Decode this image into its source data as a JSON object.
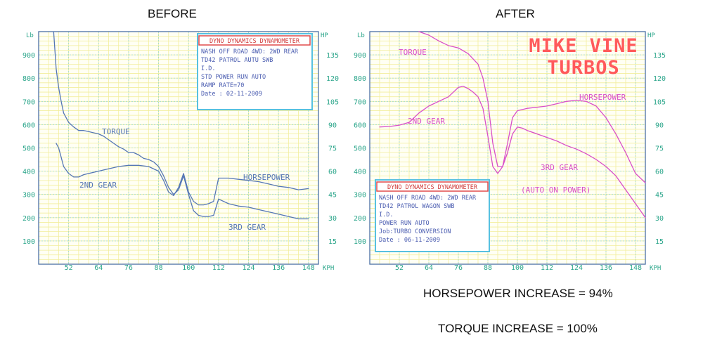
{
  "headings": {
    "before": "BEFORE",
    "after": "AFTER"
  },
  "footer": {
    "hp_increase": "HORSEPOWER INCREASE = 94%",
    "torque_increase": "TORQUE INCREASE = 100%"
  },
  "colors": {
    "grid_minor": "#f2ee9c",
    "grid_major": "#80cfd8",
    "axis_text": "#2aa58a",
    "before_curve": "#5577b5",
    "after_curve": "#d94fc9",
    "box_border": "#57c1e0",
    "title_border": "#e04c4c",
    "title_text": "#d03a3a",
    "box_text": "#4a5cb0",
    "brand": "#ff5a5a"
  },
  "chart_data": [
    {
      "type": "line",
      "title": "BEFORE",
      "xlabel": "KPH",
      "ylabel_left": "Lb",
      "ylabel_right": "HP",
      "xlim": [
        40,
        152
      ],
      "x_ticks": [
        "52",
        "64",
        "76",
        "88",
        "100",
        "112",
        "124",
        "136",
        "148"
      ],
      "ylim_left": [
        0,
        1000
      ],
      "y_ticks_left": [
        "100",
        "200",
        "300",
        "400",
        "500",
        "600",
        "700",
        "800",
        "900"
      ],
      "ylim_right": [
        0,
        150
      ],
      "y_ticks_right": [
        "15",
        "30",
        "45",
        "60",
        "75",
        "90",
        "105",
        "120",
        "135"
      ],
      "grid": true,
      "series": [
        {
          "name": "TORQUE",
          "axis": "left",
          "x": [
            46,
            46.5,
            47,
            48,
            49,
            50,
            52,
            54,
            56,
            58,
            60,
            62,
            64,
            66,
            68,
            70,
            72,
            74,
            76,
            78,
            80,
            82,
            84,
            86,
            88,
            90,
            92,
            94,
            96,
            98,
            100,
            102,
            104,
            106,
            108,
            110,
            112,
            116,
            120,
            124,
            128,
            132,
            136,
            140,
            144,
            148
          ],
          "values": [
            1000,
            920,
            840,
            760,
            700,
            650,
            610,
            590,
            575,
            575,
            570,
            565,
            560,
            550,
            535,
            520,
            505,
            495,
            480,
            480,
            470,
            455,
            450,
            440,
            420,
            380,
            330,
            300,
            320,
            380,
            300,
            230,
            210,
            205,
            205,
            210,
            280,
            260,
            250,
            245,
            235,
            225,
            215,
            205,
            195,
            195
          ]
        },
        {
          "name": "HORSEPOWER",
          "axis": "left",
          "x": [
            47,
            48,
            49,
            50,
            52,
            54,
            56,
            58,
            60,
            62,
            64,
            66,
            68,
            70,
            72,
            76,
            80,
            84,
            88,
            90,
            92,
            94,
            96,
            98,
            100,
            102,
            104,
            106,
            108,
            110,
            112,
            116,
            120,
            124,
            128,
            132,
            136,
            140,
            144,
            148
          ],
          "values": [
            520,
            500,
            460,
            420,
            390,
            375,
            375,
            385,
            390,
            395,
            400,
            405,
            410,
            415,
            420,
            425,
            425,
            420,
            400,
            360,
            310,
            295,
            330,
            390,
            310,
            270,
            255,
            255,
            260,
            270,
            370,
            370,
            365,
            360,
            355,
            345,
            335,
            330,
            320,
            325
          ]
        }
      ],
      "annotations": [
        "TORQUE",
        "2ND GEAR",
        "HORSEPOWER",
        "3RD GEAR"
      ],
      "info_box": {
        "title": "DYNO DYNAMICS DYNAMOMETER",
        "lines": [
          "NASH OFF ROAD 4WD: 2WD REAR",
          "TD42 PATROL AUTU SWB",
          "I.D.",
          "STD POWER RUN AUTO",
          "RAMP RATE=70",
          "Date      : 02-11-2009"
        ]
      }
    },
    {
      "type": "line",
      "title": "AFTER",
      "xlabel": "KPH",
      "ylabel_left": "Lb",
      "ylabel_right": "HP",
      "xlim": [
        40,
        152
      ],
      "x_ticks": [
        "52",
        "64",
        "76",
        "88",
        "100",
        "112",
        "124",
        "136",
        "148"
      ],
      "ylim_left": [
        0,
        1000
      ],
      "y_ticks_left": [
        "100",
        "200",
        "300",
        "400",
        "500",
        "600",
        "700",
        "800",
        "900"
      ],
      "ylim_right": [
        0,
        150
      ],
      "y_ticks_right": [
        "15",
        "30",
        "45",
        "60",
        "75",
        "90",
        "105",
        "120",
        "135"
      ],
      "grid": true,
      "series": [
        {
          "name": "TORQUE",
          "axis": "left",
          "x": [
            60,
            64,
            68,
            72,
            76,
            80,
            84,
            86,
            88,
            90,
            92,
            94,
            96,
            98,
            100,
            102,
            104,
            108,
            112,
            116,
            120,
            124,
            128,
            132,
            136,
            140,
            144,
            148,
            152
          ],
          "values": [
            1000,
            985,
            960,
            940,
            930,
            905,
            860,
            800,
            700,
            520,
            420,
            420,
            480,
            560,
            590,
            585,
            575,
            560,
            545,
            530,
            510,
            495,
            475,
            450,
            420,
            380,
            320,
            260,
            200
          ]
        },
        {
          "name": "HORSEPOWER",
          "axis": "left",
          "x": [
            44,
            48,
            52,
            56,
            60,
            64,
            68,
            72,
            76,
            78,
            80,
            82,
            84,
            86,
            88,
            90,
            92,
            94,
            96,
            98,
            100,
            104,
            108,
            112,
            116,
            120,
            124,
            128,
            132,
            136,
            140,
            144,
            148,
            152
          ],
          "values": [
            590,
            592,
            598,
            610,
            650,
            680,
            700,
            720,
            760,
            765,
            755,
            740,
            720,
            670,
            550,
            420,
            390,
            420,
            520,
            630,
            660,
            670,
            675,
            680,
            690,
            700,
            705,
            700,
            680,
            630,
            560,
            480,
            390,
            350
          ]
        }
      ],
      "annotations": [
        "TORQUE",
        "2ND GEAR",
        "HORSEPOWER",
        "3RD GEAR",
        "(AUTO ON POWER)"
      ],
      "brand": [
        "MIKE VINE",
        "TURBOS"
      ],
      "info_box": {
        "title": "DYNO DYNAMICS DYNAMOMETER",
        "lines": [
          "NASH OFF ROAD 4WD: 2WD REAR",
          "TD42 PATROL WAGON SWB",
          "I.D.",
          "POWER RUN AUTO",
          "Job:TURBO CONVERSION",
          "Date      : 06-11-2009"
        ]
      }
    }
  ]
}
